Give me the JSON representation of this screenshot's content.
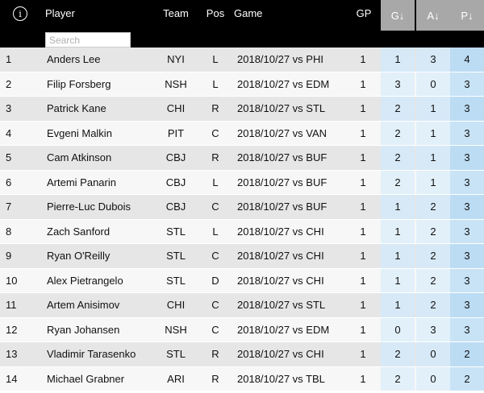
{
  "header": {
    "info_icon": "i",
    "player": "Player",
    "team": "Team",
    "pos": "Pos",
    "game": "Game",
    "gp": "GP",
    "g": "G↓",
    "a": "A↓",
    "p": "P↓"
  },
  "search": {
    "placeholder": "Search",
    "value": ""
  },
  "rows": [
    {
      "rank": "1",
      "player": "Anders Lee",
      "team": "NYI",
      "pos": "L",
      "game": "2018/10/27 vs PHI",
      "gp": "1",
      "g": "1",
      "a": "3",
      "p": "4"
    },
    {
      "rank": "2",
      "player": "Filip Forsberg",
      "team": "NSH",
      "pos": "L",
      "game": "2018/10/27 vs EDM",
      "gp": "1",
      "g": "3",
      "a": "0",
      "p": "3"
    },
    {
      "rank": "3",
      "player": "Patrick Kane",
      "team": "CHI",
      "pos": "R",
      "game": "2018/10/27 vs STL",
      "gp": "1",
      "g": "2",
      "a": "1",
      "p": "3"
    },
    {
      "rank": "4",
      "player": "Evgeni Malkin",
      "team": "PIT",
      "pos": "C",
      "game": "2018/10/27 vs VAN",
      "gp": "1",
      "g": "2",
      "a": "1",
      "p": "3"
    },
    {
      "rank": "5",
      "player": "Cam Atkinson",
      "team": "CBJ",
      "pos": "R",
      "game": "2018/10/27 vs BUF",
      "gp": "1",
      "g": "2",
      "a": "1",
      "p": "3"
    },
    {
      "rank": "6",
      "player": "Artemi Panarin",
      "team": "CBJ",
      "pos": "L",
      "game": "2018/10/27 vs BUF",
      "gp": "1",
      "g": "2",
      "a": "1",
      "p": "3"
    },
    {
      "rank": "7",
      "player": "Pierre-Luc Dubois",
      "team": "CBJ",
      "pos": "C",
      "game": "2018/10/27 vs BUF",
      "gp": "1",
      "g": "1",
      "a": "2",
      "p": "3"
    },
    {
      "rank": "8",
      "player": "Zach Sanford",
      "team": "STL",
      "pos": "L",
      "game": "2018/10/27 vs CHI",
      "gp": "1",
      "g": "1",
      "a": "2",
      "p": "3"
    },
    {
      "rank": "9",
      "player": "Ryan O'Reilly",
      "team": "STL",
      "pos": "C",
      "game": "2018/10/27 vs CHI",
      "gp": "1",
      "g": "1",
      "a": "2",
      "p": "3"
    },
    {
      "rank": "10",
      "player": "Alex Pietrangelo",
      "team": "STL",
      "pos": "D",
      "game": "2018/10/27 vs CHI",
      "gp": "1",
      "g": "1",
      "a": "2",
      "p": "3"
    },
    {
      "rank": "11",
      "player": "Artem Anisimov",
      "team": "CHI",
      "pos": "C",
      "game": "2018/10/27 vs STL",
      "gp": "1",
      "g": "1",
      "a": "2",
      "p": "3"
    },
    {
      "rank": "12",
      "player": "Ryan Johansen",
      "team": "NSH",
      "pos": "C",
      "game": "2018/10/27 vs EDM",
      "gp": "1",
      "g": "0",
      "a": "3",
      "p": "3"
    },
    {
      "rank": "13",
      "player": "Vladimir Tarasenko",
      "team": "STL",
      "pos": "R",
      "game": "2018/10/27 vs CHI",
      "gp": "1",
      "g": "2",
      "a": "0",
      "p": "2"
    },
    {
      "rank": "14",
      "player": "Michael Grabner",
      "team": "ARI",
      "pos": "R",
      "game": "2018/10/27 vs TBL",
      "gp": "1",
      "g": "2",
      "a": "0",
      "p": "2"
    }
  ]
}
